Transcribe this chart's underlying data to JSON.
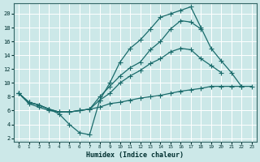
{
  "xlabel": "Humidex (Indice chaleur)",
  "bg_color": "#cce8e8",
  "grid_color": "#ffffff",
  "line_color": "#1a6b6b",
  "marker": "+",
  "markersize": 4,
  "linewidth": 0.9,
  "xlim": [
    -0.5,
    23.5
  ],
  "ylim": [
    1.5,
    21.5
  ],
  "xticks": [
    0,
    1,
    2,
    3,
    4,
    5,
    6,
    7,
    8,
    9,
    10,
    11,
    12,
    13,
    14,
    15,
    16,
    17,
    18,
    19,
    20,
    21,
    22,
    23
  ],
  "yticks": [
    2,
    4,
    6,
    8,
    10,
    12,
    14,
    16,
    18,
    20
  ],
  "line_wavy_x": [
    0,
    1,
    2,
    3,
    4,
    5,
    6,
    7,
    8,
    9,
    10,
    11,
    12,
    13,
    14,
    15,
    16,
    17,
    18,
    19,
    20,
    21,
    22,
    23
  ],
  "line_wavy_y": [
    8.5,
    7.2,
    6.8,
    6.2,
    5.5,
    4.0,
    2.8,
    2.5,
    7.5,
    10.0,
    13.0,
    15.0,
    16.2,
    17.8,
    19.5,
    20.0,
    20.5,
    21.0,
    18.0,
    15.0,
    13.2,
    11.5,
    9.5,
    null
  ],
  "line_upper_x": [
    0,
    1,
    2,
    3,
    4,
    5,
    6,
    7,
    8,
    9,
    10,
    11,
    12,
    13,
    14,
    15,
    16,
    17,
    18,
    19,
    20,
    21,
    22,
    23
  ],
  "line_upper_y": [
    8.5,
    7.2,
    6.8,
    6.2,
    5.8,
    5.8,
    6.0,
    6.2,
    8.0,
    9.5,
    11.0,
    12.2,
    13.0,
    14.8,
    16.0,
    17.8,
    19.0,
    18.8,
    17.8,
    null,
    null,
    null,
    null,
    null
  ],
  "line_mid_x": [
    0,
    1,
    2,
    3,
    4,
    5,
    6,
    7,
    8,
    9,
    10,
    11,
    12,
    13,
    14,
    15,
    16,
    17,
    18,
    19,
    20,
    21,
    22,
    23
  ],
  "line_mid_y": [
    8.5,
    7.2,
    6.8,
    6.2,
    5.8,
    5.8,
    6.0,
    6.2,
    7.5,
    8.5,
    10.0,
    11.0,
    11.8,
    12.8,
    13.5,
    14.5,
    15.0,
    14.8,
    13.5,
    12.5,
    11.5,
    null,
    null,
    null
  ],
  "line_low_x": [
    0,
    1,
    2,
    3,
    4,
    5,
    6,
    7,
    8,
    9,
    10,
    11,
    12,
    13,
    14,
    15,
    16,
    17,
    18,
    19,
    20,
    21,
    22,
    23
  ],
  "line_low_y": [
    8.5,
    7.0,
    6.5,
    6.0,
    5.8,
    5.8,
    6.0,
    6.2,
    6.5,
    7.0,
    7.2,
    7.5,
    7.8,
    8.0,
    8.2,
    8.5,
    8.8,
    9.0,
    9.2,
    9.5,
    9.5,
    9.5,
    9.5,
    9.5
  ]
}
